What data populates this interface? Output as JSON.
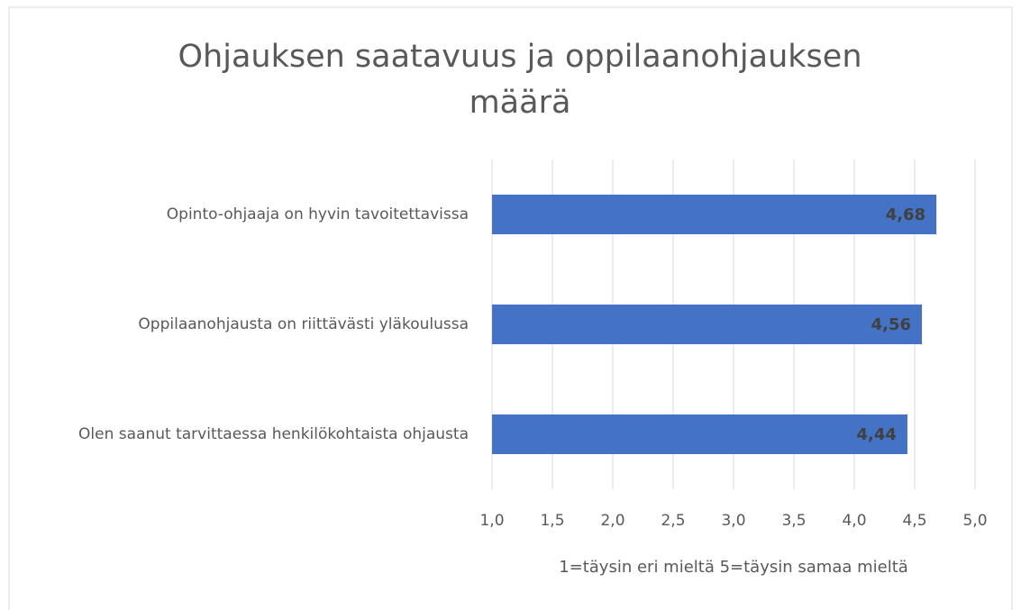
{
  "chart_data": {
    "type": "barh",
    "title": "Ohjauksen saatavuus ja oppilaanohjauksen määrä",
    "categories": [
      "Opinto-ohjaaja on hyvin tavoitettavissa",
      "Oppilaanohjausta on riittävästi yläkoulussa",
      "Olen saanut tarvittaessa henkilökohtaista ohjausta"
    ],
    "values": [
      4.68,
      4.56,
      4.44
    ],
    "value_labels": [
      "4,68",
      "4,56",
      "4,44"
    ],
    "color": "#4472c4",
    "xlim": [
      1,
      5
    ],
    "xticks": [
      {
        "value": 1,
        "label": "1,0"
      },
      {
        "value": 1.5,
        "label": "1,5"
      },
      {
        "value": 2,
        "label": "2,0"
      },
      {
        "value": 2.5,
        "label": "2,5"
      },
      {
        "value": 3,
        "label": "3,0"
      },
      {
        "value": 3.5,
        "label": "3,5"
      },
      {
        "value": 4,
        "label": "4,0"
      },
      {
        "value": 4.5,
        "label": "4,5"
      },
      {
        "value": 5,
        "label": "5,0"
      }
    ],
    "xlabel": "1=täysin eri mieltä 5=täysin samaa mieltä",
    "grid": true
  }
}
